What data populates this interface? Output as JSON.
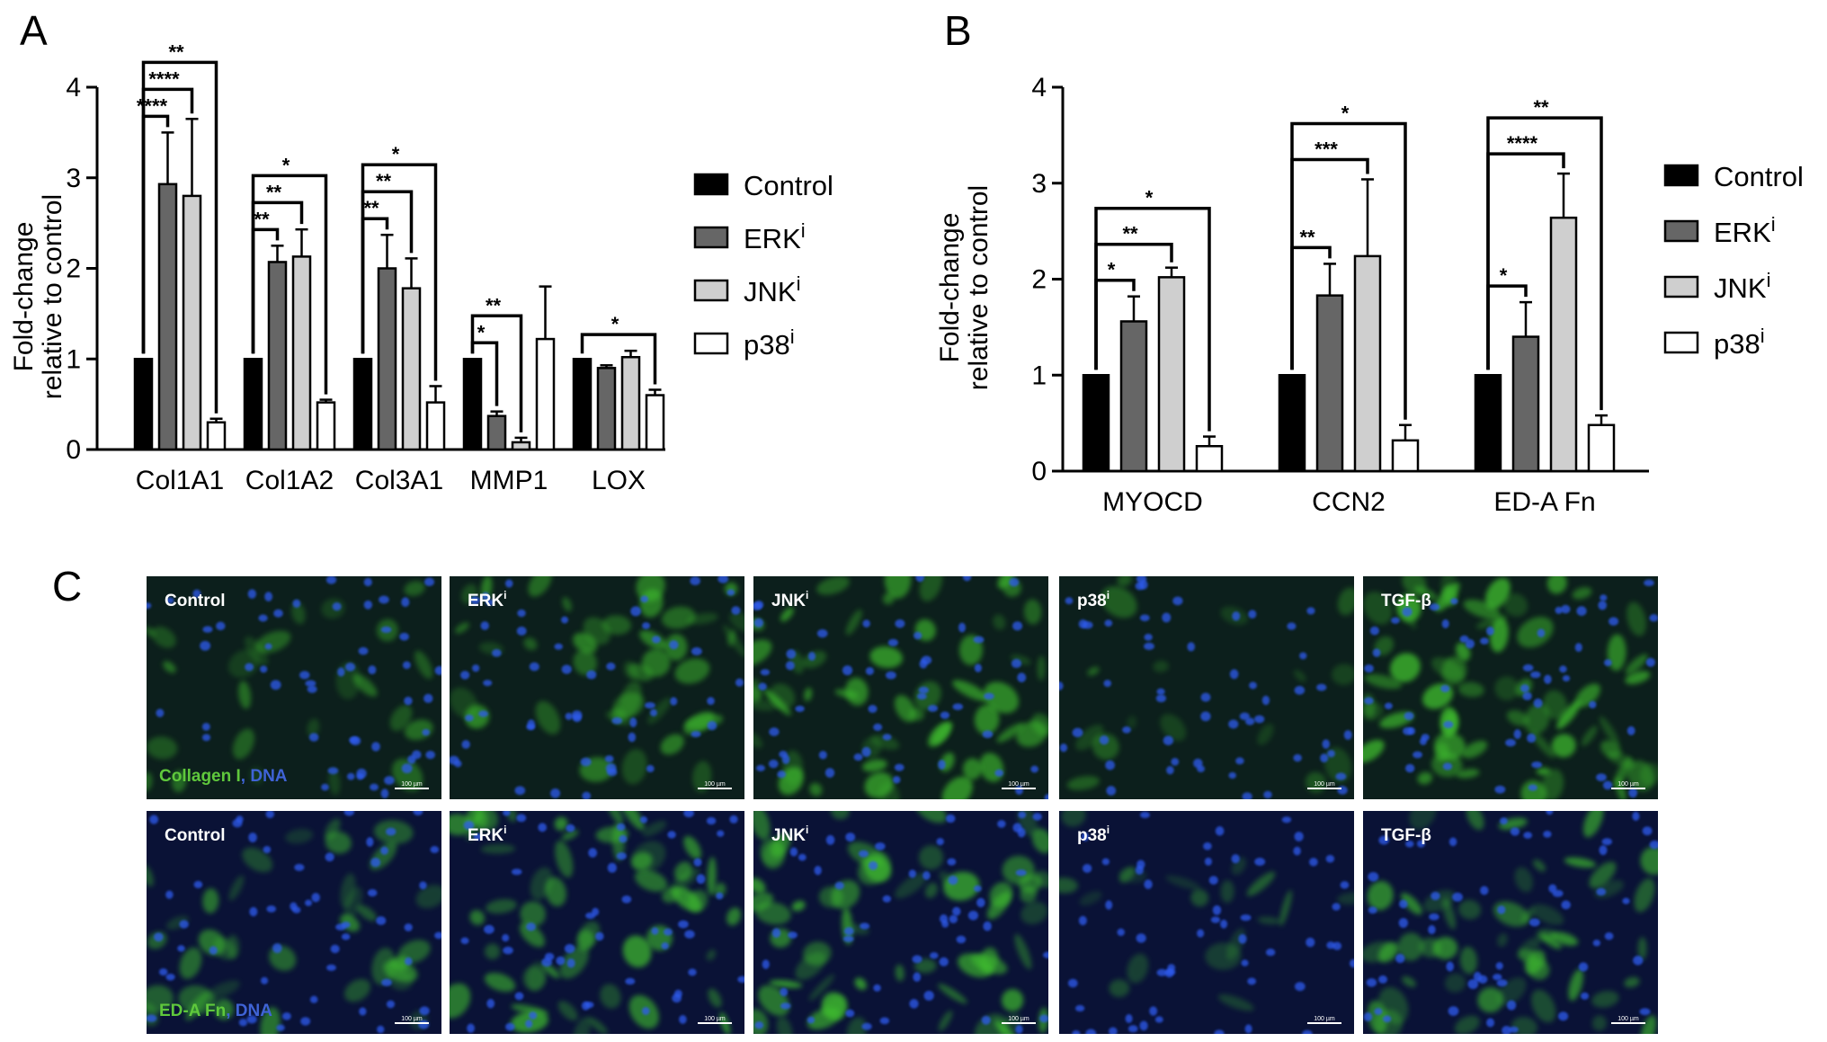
{
  "panels": {
    "a": "A",
    "b": "B",
    "c": "C"
  },
  "colors": {
    "control": "#000000",
    "erk": "#666666",
    "jnk": "#cfcfcf",
    "p38": "#ffffff",
    "green_stain": "#5fc83c",
    "blue_stain": "#3f63d6"
  },
  "legend": [
    {
      "key": "control",
      "label": "Control",
      "sup": ""
    },
    {
      "key": "erk",
      "label": "ERK",
      "sup": "i"
    },
    {
      "key": "jnk",
      "label": "JNK",
      "sup": "i"
    },
    {
      "key": "p38",
      "label": "p38",
      "sup": "i"
    }
  ],
  "chart_data": [
    {
      "type": "bar",
      "panel": "A",
      "ylabel_line1": "Fold-change",
      "ylabel_line2": "relative to control",
      "ylim": [
        0,
        4
      ],
      "yticks": [
        "0",
        "1",
        "2",
        "3",
        "4"
      ],
      "categories": [
        "Col1A1",
        "Col1A2",
        "Col3A1",
        "MMP1",
        "LOX"
      ],
      "series": [
        {
          "name": "Control",
          "values": [
            1.0,
            1.0,
            1.0,
            1.0,
            1.0
          ],
          "errors": [
            0,
            0,
            0,
            0,
            0
          ]
        },
        {
          "name": "ERKi",
          "values": [
            2.93,
            2.07,
            2.0,
            0.37,
            0.9
          ],
          "errors": [
            0.57,
            0.18,
            0.37,
            0.05,
            0.03
          ]
        },
        {
          "name": "JNKi",
          "values": [
            2.8,
            2.13,
            1.78,
            0.08,
            1.02
          ],
          "errors": [
            0.85,
            0.3,
            0.33,
            0.05,
            0.07
          ]
        },
        {
          "name": "p38i",
          "values": [
            0.3,
            0.52,
            0.52,
            1.22,
            0.6
          ],
          "errors": [
            0.04,
            0.03,
            0.18,
            0.58,
            0.06
          ]
        }
      ],
      "significance": [
        {
          "group": 0,
          "to": 1,
          "stars": "****"
        },
        {
          "group": 0,
          "to": 2,
          "stars": "****"
        },
        {
          "group": 0,
          "to": 3,
          "stars": "**"
        },
        {
          "group": 1,
          "to": 1,
          "stars": "**"
        },
        {
          "group": 1,
          "to": 2,
          "stars": "**"
        },
        {
          "group": 1,
          "to": 3,
          "stars": "*"
        },
        {
          "group": 2,
          "to": 1,
          "stars": "**"
        },
        {
          "group": 2,
          "to": 2,
          "stars": "**"
        },
        {
          "group": 2,
          "to": 3,
          "stars": "*"
        },
        {
          "group": 3,
          "to": 1,
          "stars": "*"
        },
        {
          "group": 3,
          "to": 2,
          "stars": "**"
        },
        {
          "group": 4,
          "to": 3,
          "stars": "*"
        }
      ]
    },
    {
      "type": "bar",
      "panel": "B",
      "ylabel_line1": "Fold-change",
      "ylabel_line2": "relative to control",
      "ylim": [
        0,
        4
      ],
      "yticks": [
        "0",
        "1",
        "2",
        "3",
        "4"
      ],
      "categories": [
        "MYOCD",
        "CCN2",
        "ED-A Fn"
      ],
      "series": [
        {
          "name": "Control",
          "values": [
            1.0,
            1.0,
            1.0
          ],
          "errors": [
            0,
            0,
            0
          ]
        },
        {
          "name": "ERKi",
          "values": [
            1.56,
            1.83,
            1.4
          ],
          "errors": [
            0.26,
            0.33,
            0.36
          ]
        },
        {
          "name": "JNKi",
          "values": [
            2.02,
            2.24,
            2.64
          ],
          "errors": [
            0.1,
            0.8,
            0.46
          ]
        },
        {
          "name": "p38i",
          "values": [
            0.26,
            0.32,
            0.48
          ],
          "errors": [
            0.1,
            0.16,
            0.1
          ]
        }
      ],
      "significance": [
        {
          "group": 0,
          "to": 1,
          "stars": "*"
        },
        {
          "group": 0,
          "to": 2,
          "stars": "**"
        },
        {
          "group": 0,
          "to": 3,
          "stars": "*"
        },
        {
          "group": 1,
          "to": 1,
          "stars": "**"
        },
        {
          "group": 1,
          "to": 2,
          "stars": "***"
        },
        {
          "group": 1,
          "to": 3,
          "stars": "*"
        },
        {
          "group": 2,
          "to": 1,
          "stars": "*"
        },
        {
          "group": 2,
          "to": 2,
          "stars": "****"
        },
        {
          "group": 2,
          "to": 3,
          "stars": "**"
        }
      ]
    }
  ],
  "micrographs": {
    "row1_stain": {
      "green": "Collagen I",
      "sep": ", ",
      "blue": "DNA"
    },
    "row2_stain": {
      "green": "ED-A Fn",
      "sep": ", ",
      "blue": "DNA"
    },
    "scale_bar": "100 µm",
    "rows": [
      [
        {
          "label": "Control",
          "sup": "",
          "intensity": 0.25
        },
        {
          "label": "ERK",
          "sup": "i",
          "intensity": 0.55
        },
        {
          "label": "JNK",
          "sup": "i",
          "intensity": 0.75
        },
        {
          "label": "p38",
          "sup": "i",
          "intensity": 0.1
        },
        {
          "label": "TGF-β",
          "sup": "",
          "intensity": 0.9
        }
      ],
      [
        {
          "label": "Control",
          "sup": "",
          "intensity": 0.45
        },
        {
          "label": "ERK",
          "sup": "i",
          "intensity": 0.8
        },
        {
          "label": "JNK",
          "sup": "i",
          "intensity": 0.85
        },
        {
          "label": "p38",
          "sup": "i",
          "intensity": 0.15
        },
        {
          "label": "TGF-β",
          "sup": "",
          "intensity": 0.7
        }
      ]
    ]
  }
}
